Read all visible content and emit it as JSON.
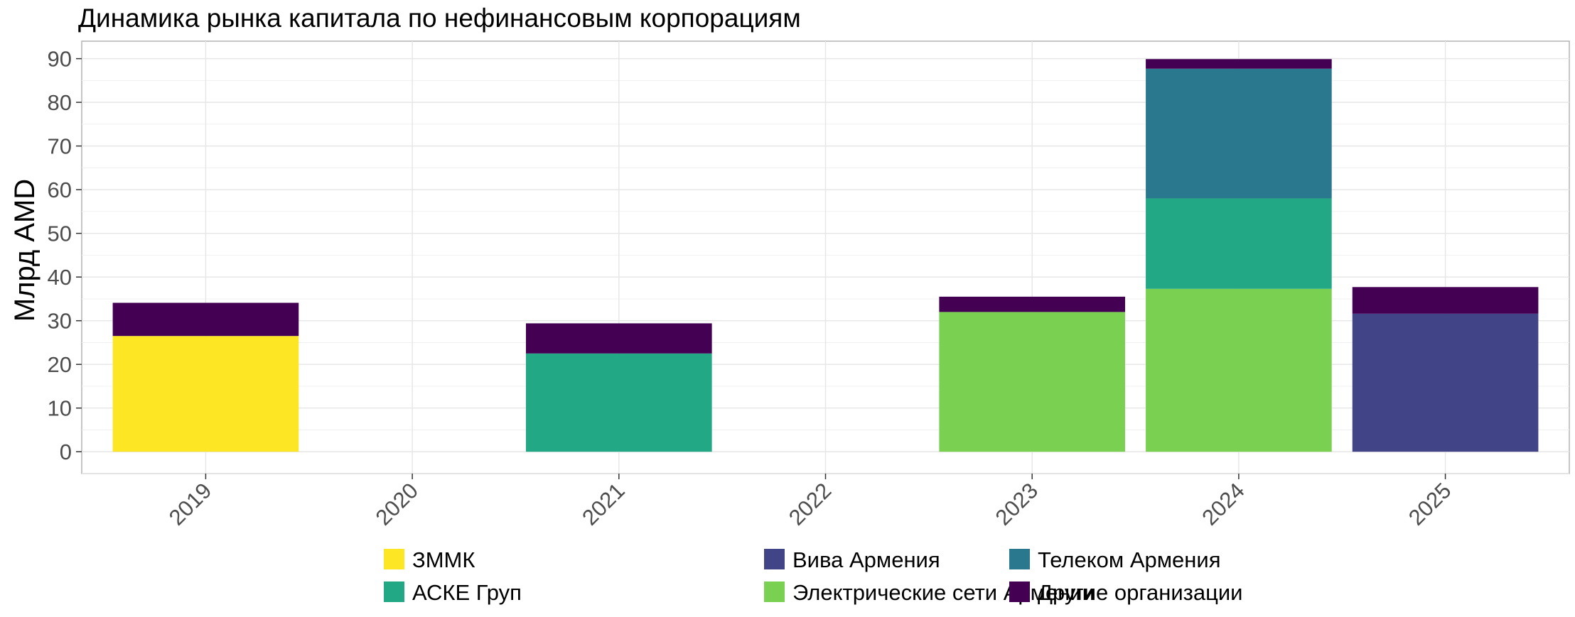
{
  "chart_data": {
    "type": "bar",
    "stacked": true,
    "title": "Динамика рынка капитала по нефинансовым корпорациям",
    "xlabel": "",
    "ylabel": "Млрд AMD",
    "ylim": [
      -5,
      94
    ],
    "yticks": [
      0,
      10,
      20,
      30,
      40,
      50,
      60,
      70,
      80,
      90
    ],
    "grid": true,
    "legend_position": "bottom",
    "categories": [
      "2019",
      "2020",
      "2021",
      "2022",
      "2023",
      "2024",
      "2025"
    ],
    "series": [
      {
        "name": "ЗММК",
        "color": "#FDE725",
        "values": [
          26.5,
          0,
          0,
          0,
          0,
          0,
          0
        ]
      },
      {
        "name": "Электрические сети Армении",
        "color": "#7AD151",
        "values": [
          0,
          0,
          0,
          0,
          32,
          37.3,
          0
        ]
      },
      {
        "name": "АСКЕ Груп",
        "color": "#22A884",
        "values": [
          0,
          0,
          22.5,
          0,
          0,
          20.7,
          0
        ]
      },
      {
        "name": "Телеком Армения",
        "color": "#2A788E",
        "values": [
          0,
          0,
          0,
          0,
          0,
          29.7,
          0
        ]
      },
      {
        "name": "Вива Армения",
        "color": "#414487",
        "values": [
          0,
          0,
          0,
          0,
          0,
          0,
          31.6
        ]
      },
      {
        "name": "Другие организации",
        "color": "#440154",
        "values": [
          7.6,
          0,
          6.9,
          0,
          3.5,
          2.2,
          6.1
        ]
      }
    ],
    "legend_order": [
      0,
      2,
      4,
      1,
      3,
      5
    ]
  }
}
